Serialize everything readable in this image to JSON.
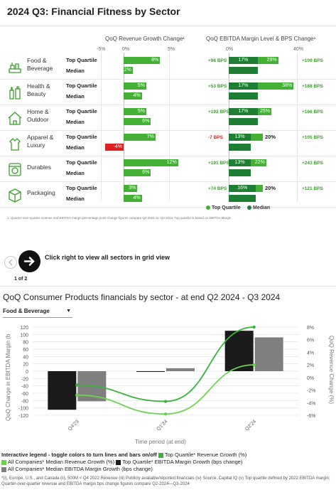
{
  "header": {
    "title": "2024 Q3: Financial Fitness by Sector",
    "col_revenue": "QoQ Revenue Growth Change¹",
    "col_ebitda": "QoQ EBITDA Margin Level & BPS Change¹",
    "rev_ticks": [
      "-5%",
      "0%",
      "5%"
    ],
    "ebitda_ticks": [
      "0%",
      "40%"
    ]
  },
  "row_labels": {
    "top": "Top Quartile",
    "median": "Median"
  },
  "sectors": [
    {
      "icon": "food-beverage-icon",
      "name": "Food &\nBeverage",
      "top": {
        "rev": 8,
        "rev_label": "8%",
        "bps_left": "+98 BPS",
        "margin": 29,
        "margin_label": "29%",
        "bps_right": "+109 BPS"
      },
      "median": {
        "rev": 2,
        "rev_label": "2%",
        "margin": 17,
        "margin_label": "17%"
      }
    },
    {
      "icon": "health-beauty-icon",
      "name": "Health &\nBeauty",
      "top": {
        "rev": 5,
        "rev_label": "5%",
        "bps_left": "+53 BPS",
        "margin": 38,
        "margin_label": "38%",
        "bps_right": "+188 BPS"
      },
      "median": {
        "rev": 4,
        "rev_label": "4%",
        "margin": 17,
        "margin_label": "17%"
      }
    },
    {
      "icon": "home-outdoor-icon",
      "name": "Home &\nOutdoor",
      "top": {
        "rev": 5,
        "rev_label": "5%",
        "bps_left": "+192 BPS",
        "margin": 25,
        "margin_label": "25%",
        "bps_right": "+166 BPS"
      },
      "median": {
        "rev": 6,
        "rev_label": "6%",
        "margin": 17,
        "margin_label": "17%"
      }
    },
    {
      "icon": "apparel-luxury-icon",
      "name": "Apparel &\nLuxury",
      "top": {
        "rev": 7,
        "rev_label": "7%",
        "bps_left": "-7 BPS",
        "margin": 20,
        "margin_label": "20%",
        "bps_right": "+105 BPS"
      },
      "median": {
        "rev": -4,
        "rev_label": "-4%",
        "margin": 13,
        "margin_label": "13%"
      }
    },
    {
      "icon": "durables-icon",
      "name": "Durables",
      "top": {
        "rev": 12,
        "rev_label": "12%",
        "bps_left": "+191 BPS",
        "margin": 22,
        "margin_label": "22%",
        "bps_right": "+243 BPS"
      },
      "median": {
        "rev": 6,
        "rev_label": "6%",
        "margin": 13,
        "margin_label": "13%"
      }
    },
    {
      "icon": "packaging-icon",
      "name": "Packaging",
      "top": {
        "rev": 3,
        "rev_label": "3%",
        "bps_left": "+74 BPS",
        "margin": 20,
        "margin_label": "20%",
        "bps_right": "+121 BPS"
      },
      "median": {
        "rev": 4,
        "rev_label": "4%",
        "margin": 16,
        "margin_label": "16%"
      }
    }
  ],
  "legend_top": {
    "top": "Top Quartile",
    "median": "Median"
  },
  "footnote1": "1. Quarter-over-quarter revenue and EBITDA margin percentage point change figures compare Q2 2024 vs. Q3 2024. Top quartile is based on EBITDA Margin",
  "nav": {
    "hint": "Click right to view all sectors in grid view",
    "page": "1 of 2",
    "prev_icon": "chevron-left-icon",
    "next_icon": "arrow-right-icon"
  },
  "section2": {
    "title": "QoQ Consumer Products financials by sector - at end Q2 2024 - Q3 2024",
    "dropdown": "Food & Beverage",
    "ylabel_left": "QoQ Change in EBITDA Margin (b",
    "ylabel_right": "QoQ Revenue Change (%)",
    "xlabel": "Time period (at end)",
    "legend_title": "Interactive legend - toggle colors to turn lines and bars on/off",
    "legend_items": [
      "Top Quartile* Revenue Growth (%)",
      "All Companies* Median Revenue Growth (%)",
      "Top Quartile* EBITDA Margin Growth (bps change)",
      "All Companies* Median EBITDA Margin Growth (bps change)"
    ],
    "footnote": "*(i), Europe, U.S., and Canada (ii), 500M < Q4 2022 Revenue (iii) Publicly available/reported financials (iv) Source: Capital IQ (v) Top quartile defined by 2022 EBITDA margin; Quarter-over-quarter revenue and EBITDA margin bps change figures compare Q2-2024—Q3-2024"
  },
  "chart_data": {
    "type": "bar",
    "categories": [
      "Q4'23",
      "Q1'24",
      "Q2'24"
    ],
    "bars": [
      {
        "name": "Top Quartile* EBITDA Margin Growth (bps change)",
        "color": "#1a1a1a",
        "values": [
          -105,
          -2,
          110
        ]
      },
      {
        "name": "All Companies* Median EBITDA Margin Growth (bps change)",
        "color": "#7f7f7f",
        "values": [
          -82,
          8,
          92
        ]
      }
    ],
    "lines": [
      {
        "name": "Top Quartile* Revenue Growth (%)",
        "color": "#3cb43c",
        "values": [
          -1.2,
          -3.8,
          8.0
        ]
      },
      {
        "name": "All Companies* Median Revenue Growth (%)",
        "color": "#6bd44c",
        "values": [
          -2.8,
          -5.8,
          2.0
        ]
      }
    ],
    "yleft": {
      "min": -120,
      "max": 120,
      "ticks": [
        120,
        100,
        80,
        60,
        40,
        20,
        0,
        -20,
        -40,
        -60,
        -80,
        -100,
        -120
      ]
    },
    "yright": {
      "min": -6,
      "max": 8,
      "ticks": [
        "8%",
        "6%",
        "4%",
        "2%",
        "0%",
        "-2%",
        "-4%",
        "-6%"
      ],
      "tick_values": [
        8,
        6,
        4,
        2,
        0,
        -2,
        -4,
        -6
      ]
    }
  },
  "colors": {
    "dark_green": "#1e7e34",
    "light_green": "#44b036",
    "red": "#e02020"
  }
}
